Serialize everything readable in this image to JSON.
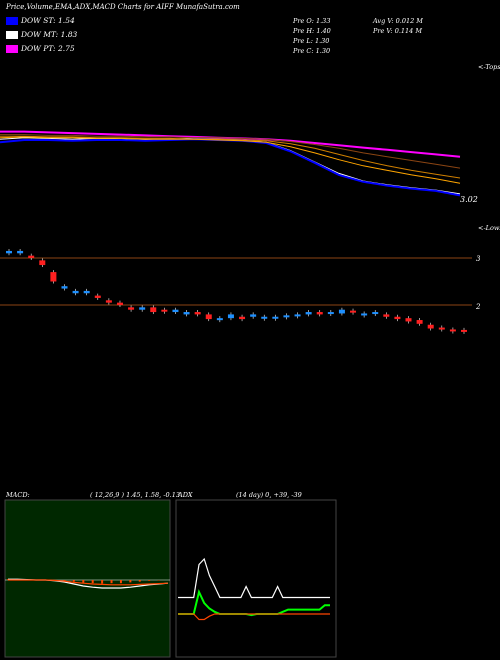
{
  "header": {
    "title": "Price,Volume,EMA,ADX,MACD Charts for AIFF MunafaSutra.com"
  },
  "legend": [
    {
      "label": "DOW ST: 1.54",
      "color": "#0000ff"
    },
    {
      "label": "DOW MT: 1.83",
      "color": "#ffffff"
    },
    {
      "label": "DOW PT: 2.75",
      "color": "#ff00ff"
    }
  ],
  "quote": {
    "prev_open": "Pre  O: 1.33",
    "prev_high": "Pre  H: 1.40",
    "prev_low": "Pre  L: 1.30",
    "prev_close": "Pre  C: 1.30",
    "avg_volume": "Avg V: 0.012  M",
    "prev_volume": "Pre  V: 0.114  M"
  },
  "price_panel": {
    "top_tag": "<-Tops",
    "bottom_tag": "<-Lows",
    "last_price": "3.02"
  },
  "candle_panel": {
    "levels": [
      "3",
      "2"
    ]
  },
  "macd": {
    "label": "MACD:",
    "params": "( 12,26,9 ) 1.45, 1.58, -0.13"
  },
  "adx": {
    "label": "ADX",
    "params": "(14  day) 0, +39, -39"
  },
  "chart_data": [
    {
      "type": "line",
      "panel": "price",
      "series": [
        {
          "name": "DOW PT",
          "color": "#ff00ff",
          "values": [
            12.0,
            12.0,
            11.9,
            11.8,
            11.7,
            11.6,
            11.5,
            11.4,
            11.3,
            11.2,
            11.1,
            11.0,
            10.8,
            10.5,
            10.2,
            9.9,
            9.6,
            9.3,
            9.0,
            8.7
          ]
        },
        {
          "name": "DOW MT",
          "color": "#ffffff",
          "values": [
            11.0,
            11.2,
            11.1,
            11.0,
            11.1,
            11.0,
            10.9,
            11.0,
            11.1,
            11.0,
            10.9,
            10.6,
            9.5,
            8.0,
            6.5,
            5.5,
            5.0,
            4.6,
            4.3,
            3.8
          ]
        },
        {
          "name": "DOW ST",
          "color": "#0000ff",
          "values": [
            10.6,
            10.9,
            10.9,
            10.8,
            10.9,
            10.9,
            10.8,
            10.9,
            11.0,
            10.9,
            10.8,
            10.5,
            9.4,
            7.9,
            6.3,
            5.4,
            4.9,
            4.5,
            4.2,
            3.6
          ]
        },
        {
          "values": [
            11.4,
            11.4,
            11.3,
            11.3,
            11.2,
            11.2,
            11.1,
            11.1,
            11.0,
            11.0,
            10.9,
            10.8,
            10.4,
            9.8,
            9.0,
            8.2,
            7.5,
            6.9,
            6.4,
            5.9
          ],
          "color": "#d08000"
        },
        {
          "values": [
            11.2,
            11.3,
            11.2,
            11.2,
            11.1,
            11.1,
            11.0,
            11.0,
            11.0,
            10.9,
            10.8,
            10.6,
            10.0,
            9.2,
            8.3,
            7.5,
            6.9,
            6.3,
            5.8,
            5.2
          ],
          "color": "#ffa500"
        },
        {
          "values": [
            11.6,
            11.6,
            11.5,
            11.5,
            11.4,
            11.4,
            11.3,
            11.3,
            11.2,
            11.2,
            11.1,
            11.0,
            10.7,
            10.3,
            9.8,
            9.2,
            8.7,
            8.2,
            7.7,
            7.2
          ],
          "color": "#8b4513"
        }
      ]
    },
    {
      "type": "bar",
      "panel": "candles",
      "series": [
        {
          "name": "open",
          "values": [
            3.1,
            3.1,
            3.05,
            2.95,
            2.7,
            2.35,
            2.25,
            2.25,
            2.2,
            2.1,
            2.05,
            1.95,
            1.9,
            1.95,
            1.9,
            1.85,
            1.8,
            1.85,
            1.8,
            1.7,
            1.72,
            1.75,
            1.75,
            1.72,
            1.72,
            1.75,
            1.78,
            1.8,
            1.85,
            1.82,
            1.82,
            1.85,
            1.8,
            1.82,
            1.8,
            1.75,
            1.72,
            1.68,
            1.58,
            1.52,
            1.48,
            1.47
          ]
        },
        {
          "name": "close",
          "values": [
            3.15,
            3.15,
            3.0,
            2.85,
            2.5,
            2.4,
            2.3,
            2.3,
            2.15,
            2.05,
            2.0,
            1.9,
            1.95,
            1.85,
            1.9,
            1.9,
            1.85,
            1.8,
            1.7,
            1.72,
            1.8,
            1.7,
            1.8,
            1.75,
            1.75,
            1.78,
            1.8,
            1.85,
            1.8,
            1.85,
            1.9,
            1.88,
            1.82,
            1.85,
            1.75,
            1.7,
            1.65,
            1.6,
            1.5,
            1.48,
            1.47,
            1.45
          ]
        },
        {
          "name": "up",
          "values": [
            1,
            1,
            0,
            0,
            0,
            1,
            1,
            1,
            0,
            0,
            0,
            0,
            1,
            0,
            0,
            1,
            1,
            0,
            0,
            1,
            1,
            0,
            1,
            1,
            1,
            1,
            1,
            1,
            0,
            1,
            1,
            0,
            1,
            1,
            0,
            0,
            0,
            0,
            0,
            0,
            0,
            0
          ]
        }
      ]
    },
    {
      "type": "line",
      "panel": "macd",
      "series": [
        {
          "name": "MACD",
          "color": "#ffffff",
          "values": [
            0.02,
            0.02,
            0.01,
            0.0,
            0.0,
            -0.02,
            -0.05,
            -0.1,
            -0.15,
            -0.18,
            -0.2,
            -0.2,
            -0.2,
            -0.18,
            -0.15,
            -0.12,
            -0.1,
            -0.08
          ]
        },
        {
          "name": "Signal",
          "color": "#ff4500",
          "values": [
            0.0,
            0.0,
            0.0,
            0.0,
            0.0,
            -0.01,
            -0.03,
            -0.06,
            -0.08,
            -0.1,
            -0.11,
            -0.12,
            -0.12,
            -0.12,
            -0.11,
            -0.1,
            -0.09,
            -0.08
          ]
        }
      ]
    },
    {
      "type": "line",
      "panel": "adx",
      "series": [
        {
          "name": "ADX",
          "color": "#ffffff",
          "values": [
            25,
            25,
            25,
            25,
            55,
            60,
            45,
            35,
            25,
            25,
            25,
            25,
            25,
            35,
            25,
            25,
            25,
            25,
            25,
            35,
            25,
            25,
            25,
            25,
            25,
            25,
            25,
            25,
            25,
            25
          ]
        },
        {
          "name": "+DI",
          "color": "#00ff00",
          "values": [
            10,
            10,
            10,
            10,
            30,
            20,
            15,
            12,
            10,
            10,
            10,
            10,
            10,
            10,
            9,
            10,
            10,
            10,
            10,
            10,
            12,
            14,
            14,
            14,
            14,
            14,
            14,
            14,
            18,
            18
          ]
        },
        {
          "name": "-DI",
          "color": "#ff4500",
          "values": [
            10,
            10,
            10,
            10,
            5,
            5,
            8,
            10,
            10,
            10,
            10,
            10,
            10,
            10,
            10,
            10,
            10,
            10,
            10,
            10,
            10,
            10,
            10,
            10,
            10,
            10,
            10,
            10,
            10,
            10
          ]
        }
      ]
    }
  ]
}
